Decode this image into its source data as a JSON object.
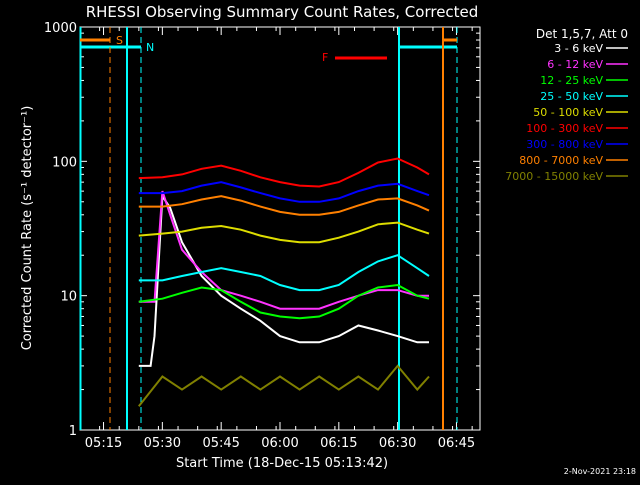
{
  "chart_data": {
    "type": "line",
    "title": "RHESSI Observing Summary Count Rates, Corrected",
    "xlabel": "Start Time (18-Dec-15 05:13:42)",
    "ylabel": "Corrected Count Rate (s⁻¹ detector⁻¹)",
    "y_scale": "log",
    "ylim": [
      1,
      1000
    ],
    "xlim": [
      "05:09",
      "06:51"
    ],
    "y_ticks": [
      {
        "value": 1,
        "label": "1"
      },
      {
        "value": 10,
        "label": "10"
      },
      {
        "value": 100,
        "label": "100"
      },
      {
        "value": 1000,
        "label": "1000"
      }
    ],
    "x_ticks": [
      "05:15",
      "05:30",
      "05:45",
      "06:00",
      "06:15",
      "06:30",
      "06:45"
    ],
    "legend_title": "Det 1,5,7, Att 0",
    "legend_position": "right",
    "footer": "2-Nov-2021 23:18",
    "series": [
      {
        "name": "3 - 6 keV",
        "color": "#ffffff",
        "x": [
          "05:24",
          "05:26",
          "05:27",
          "05:28",
          "05:30",
          "05:32",
          "05:35",
          "05:40",
          "05:45",
          "05:50",
          "05:55",
          "06:00",
          "06:05",
          "06:10",
          "06:15",
          "06:20",
          "06:25",
          "06:30",
          "06:35",
          "06:38"
        ],
        "values": [
          3,
          3,
          3,
          5,
          55,
          45,
          25,
          14,
          10,
          8,
          6.5,
          5,
          4.5,
          4.5,
          5,
          6,
          5.5,
          5,
          4.5,
          4.5
        ]
      },
      {
        "name": "6 - 12 keV",
        "color": "#ff33ff",
        "x": [
          "05:24",
          "05:26",
          "05:28",
          "05:30",
          "05:32",
          "05:35",
          "05:40",
          "05:45",
          "05:50",
          "05:55",
          "06:00",
          "06:05",
          "06:10",
          "06:15",
          "06:20",
          "06:25",
          "06:30",
          "06:35",
          "06:38"
        ],
        "values": [
          9,
          9,
          9,
          60,
          40,
          22,
          15,
          11,
          10,
          9,
          8,
          8,
          8,
          9,
          10,
          11,
          11,
          10,
          10
        ]
      },
      {
        "name": "12 - 25 keV",
        "color": "#00ff00",
        "x": [
          "05:24",
          "05:30",
          "05:35",
          "05:40",
          "05:45",
          "05:50",
          "05:55",
          "06:00",
          "06:05",
          "06:10",
          "06:15",
          "06:20",
          "06:25",
          "06:30",
          "06:35",
          "06:38"
        ],
        "values": [
          9,
          9.5,
          10.5,
          11.5,
          11,
          9,
          7.5,
          7,
          6.8,
          7,
          8,
          10,
          11.5,
          12,
          10,
          9.5
        ]
      },
      {
        "name": "25 - 50 keV",
        "color": "#00ffff",
        "x": [
          "05:24",
          "05:30",
          "05:35",
          "05:40",
          "05:45",
          "05:50",
          "05:55",
          "06:00",
          "06:05",
          "06:10",
          "06:15",
          "06:20",
          "06:25",
          "06:30",
          "06:35",
          "06:38"
        ],
        "values": [
          13,
          13,
          14,
          15,
          16,
          15,
          14,
          12,
          11,
          11,
          12,
          15,
          18,
          20,
          16,
          14
        ]
      },
      {
        "name": "50 - 100 keV",
        "color": "#dddd00",
        "x": [
          "05:24",
          "05:30",
          "05:35",
          "05:40",
          "05:45",
          "05:50",
          "05:55",
          "06:00",
          "06:05",
          "06:10",
          "06:15",
          "06:20",
          "06:25",
          "06:30",
          "06:35",
          "06:38"
        ],
        "values": [
          28,
          29,
          30,
          32,
          33,
          31,
          28,
          26,
          25,
          25,
          27,
          30,
          34,
          35,
          31,
          29
        ]
      },
      {
        "name": "100 - 300 keV",
        "color": "#ff0000",
        "x": [
          "05:24",
          "05:30",
          "05:35",
          "05:40",
          "05:45",
          "05:50",
          "05:55",
          "06:00",
          "06:05",
          "06:10",
          "06:15",
          "06:20",
          "06:25",
          "06:30",
          "06:35",
          "06:38"
        ],
        "values": [
          75,
          76,
          80,
          88,
          93,
          85,
          76,
          70,
          66,
          65,
          70,
          82,
          98,
          105,
          90,
          80
        ]
      },
      {
        "name": "300 - 800 keV",
        "color": "#0000ff",
        "x": [
          "05:24",
          "05:30",
          "05:35",
          "05:40",
          "05:45",
          "05:50",
          "05:55",
          "06:00",
          "06:05",
          "06:10",
          "06:15",
          "06:20",
          "06:25",
          "06:30",
          "06:35",
          "06:38"
        ],
        "values": [
          58,
          58,
          60,
          66,
          70,
          64,
          58,
          53,
          50,
          50,
          53,
          60,
          66,
          68,
          60,
          56
        ]
      },
      {
        "name": "800 - 7000 keV",
        "color": "#ff8000",
        "x": [
          "05:24",
          "05:30",
          "05:35",
          "05:40",
          "05:45",
          "05:50",
          "05:55",
          "06:00",
          "06:05",
          "06:10",
          "06:15",
          "06:20",
          "06:25",
          "06:30",
          "06:35",
          "06:38"
        ],
        "values": [
          46,
          46,
          48,
          52,
          55,
          51,
          46,
          42,
          40,
          40,
          42,
          47,
          52,
          53,
          47,
          43
        ]
      },
      {
        "name": "7000 - 15000 keV",
        "color": "#808000",
        "x": [
          "05:24",
          "05:30",
          "05:35",
          "05:40",
          "05:45",
          "05:50",
          "05:55",
          "06:00",
          "06:05",
          "06:10",
          "06:15",
          "06:20",
          "06:25",
          "06:30",
          "06:35",
          "06:38"
        ],
        "values": [
          1.5,
          2.5,
          2,
          2.5,
          2,
          2.5,
          2,
          2.5,
          2,
          2.5,
          2,
          2.5,
          2,
          3,
          2,
          2.5
        ]
      }
    ],
    "annotations": [
      {
        "label": "S",
        "color": "#ff8000"
      },
      {
        "label": "N",
        "color": "#00ffff"
      },
      {
        "label": "F",
        "color": "#ff0000"
      }
    ]
  }
}
